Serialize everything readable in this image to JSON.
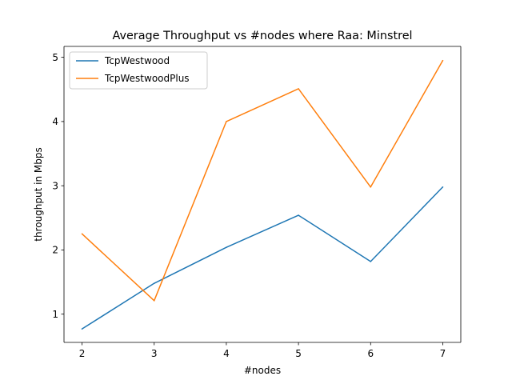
{
  "chart_data": {
    "type": "line",
    "title": "Average Throughput vs #nodes where Raa: Minstrel",
    "xlabel": "#nodes",
    "ylabel": "throughput in Mbps",
    "x": [
      2,
      3,
      4,
      5,
      6,
      7
    ],
    "xticks": [
      "2",
      "3",
      "4",
      "5",
      "6",
      "7"
    ],
    "yticks": [
      "1",
      "2",
      "3",
      "4",
      "5"
    ],
    "xlim": [
      1.75,
      7.25
    ],
    "ylim": [
      0.56,
      5.17
    ],
    "grid": false,
    "legend_position": "upper left",
    "series": [
      {
        "name": "TcpWestwood",
        "color": "#1f77b4",
        "values": [
          0.77,
          1.48,
          2.04,
          2.54,
          1.82,
          2.98
        ]
      },
      {
        "name": "TcpWestwoodPlus",
        "color": "#ff7f0e",
        "values": [
          2.25,
          1.21,
          4.0,
          4.51,
          2.98,
          4.95
        ]
      }
    ]
  }
}
